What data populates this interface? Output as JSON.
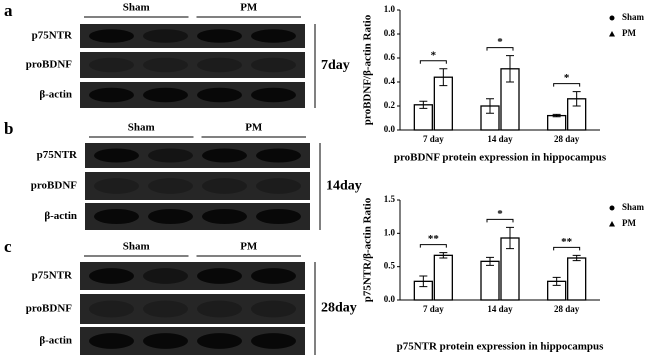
{
  "blots": [
    {
      "label": "a",
      "groups": [
        "Sham",
        "PM"
      ],
      "rows": [
        "p75NTR",
        "proBDNF",
        "β-actin"
      ],
      "time": "7day"
    },
    {
      "label": "b",
      "groups": [
        "Sham",
        "PM"
      ],
      "rows": [
        "p75NTR",
        "proBDNF",
        "β-actin"
      ],
      "time": "14day"
    },
    {
      "label": "c",
      "groups": [
        "Sham",
        "PM"
      ],
      "rows": [
        "p75NTR",
        "proBDNF",
        "β-actin"
      ],
      "time": "28day"
    }
  ],
  "chart_data": [
    {
      "type": "bar",
      "title": "proBDNF protein expression in hippocampus",
      "y_label": "proBDNF/β-actin Ratio",
      "categories": [
        "7 day",
        "14 day",
        "28 day"
      ],
      "series": [
        {
          "name": "Sham",
          "color": "#000000",
          "values": [
            0.21,
            0.2,
            0.12
          ],
          "errors": [
            0.03,
            0.06,
            0.01
          ]
        },
        {
          "name": "PM",
          "color": "#000000",
          "values": [
            0.44,
            0.51,
            0.26
          ],
          "errors": [
            0.07,
            0.11,
            0.06
          ]
        }
      ],
      "significance": [
        "*",
        "*",
        "*"
      ],
      "ylim": [
        0,
        1
      ],
      "yticks": [
        {
          "value": 0,
          "label": "0.0"
        },
        {
          "value": 0.2,
          "label": "0.2"
        },
        {
          "value": 0.4,
          "label": "0.4"
        },
        {
          "value": 0.6,
          "label": "0.6"
        },
        {
          "value": 0.8,
          "label": "0.8"
        },
        {
          "value": 1,
          "label": "1.0"
        }
      ],
      "legend": "upper right"
    },
    {
      "type": "bar",
      "title": "p75NTR protein expression in hippocampus",
      "y_label": "p75NTR/β-actin Ratio",
      "categories": [
        "7 day",
        "14 day",
        "28 day"
      ],
      "series": [
        {
          "name": "Sham",
          "color": "#000000",
          "values": [
            0.28,
            0.58,
            0.28
          ],
          "errors": [
            0.08,
            0.06,
            0.06
          ]
        },
        {
          "name": "PM",
          "color": "#000000",
          "values": [
            0.67,
            0.93,
            0.63
          ],
          "errors": [
            0.04,
            0.16,
            0.04
          ]
        }
      ],
      "significance": [
        "**",
        "*",
        "**"
      ],
      "ylim": [
        0,
        1.5
      ],
      "yticks": [
        {
          "value": 0,
          "label": "0.0"
        },
        {
          "value": 0.5,
          "label": "0.5"
        },
        {
          "value": 1,
          "label": "1.0"
        },
        {
          "value": 1.5,
          "label": "1.5"
        }
      ],
      "legend": "upper right"
    }
  ]
}
